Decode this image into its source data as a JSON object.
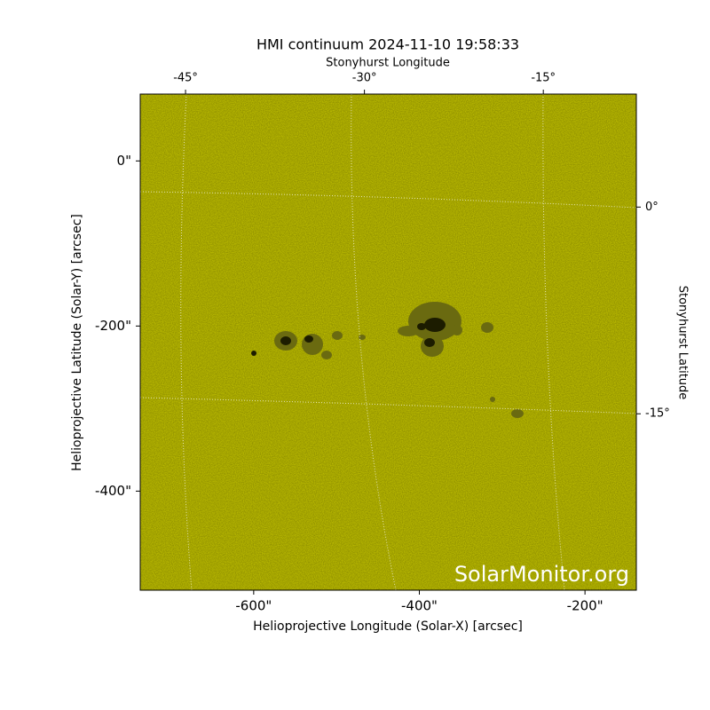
{
  "chart_data": {
    "type": "image",
    "title": "HMI continuum 2024-11-10 19:58:33",
    "xlabel": "Helioprojective Longitude (Solar-X) [arcsec]",
    "ylabel": "Helioprojective Latitude (Solar-Y) [arcsec]",
    "x2label": "Stonyhurst Longitude",
    "y2label": "Stonyhurst Latitude",
    "watermark": "SolarMonitor.org",
    "color": "#c8c800",
    "xlim": [
      -737,
      -138
    ],
    "ylim": [
      -520,
      81
    ],
    "xticks": [
      {
        "value": -600,
        "label": "-600\""
      },
      {
        "value": -400,
        "label": "-400\""
      },
      {
        "value": -200,
        "label": "-200\""
      }
    ],
    "yticks": [
      {
        "value": 0,
        "label": "0\""
      },
      {
        "value": -200,
        "label": "-200\""
      },
      {
        "value": -400,
        "label": "-400\""
      }
    ],
    "x2lim": [
      -48.8,
      -7.2
    ],
    "x2ticks": [
      {
        "value": -45,
        "label": "-45°"
      },
      {
        "value": -30,
        "label": "-30°"
      },
      {
        "value": -15,
        "label": "-15°"
      }
    ],
    "y2lim": [
      -27.8,
      8.2
    ],
    "y2ticks": [
      {
        "value": 0,
        "label": "0°"
      },
      {
        "value": -15,
        "label": "-15°"
      }
    ]
  }
}
